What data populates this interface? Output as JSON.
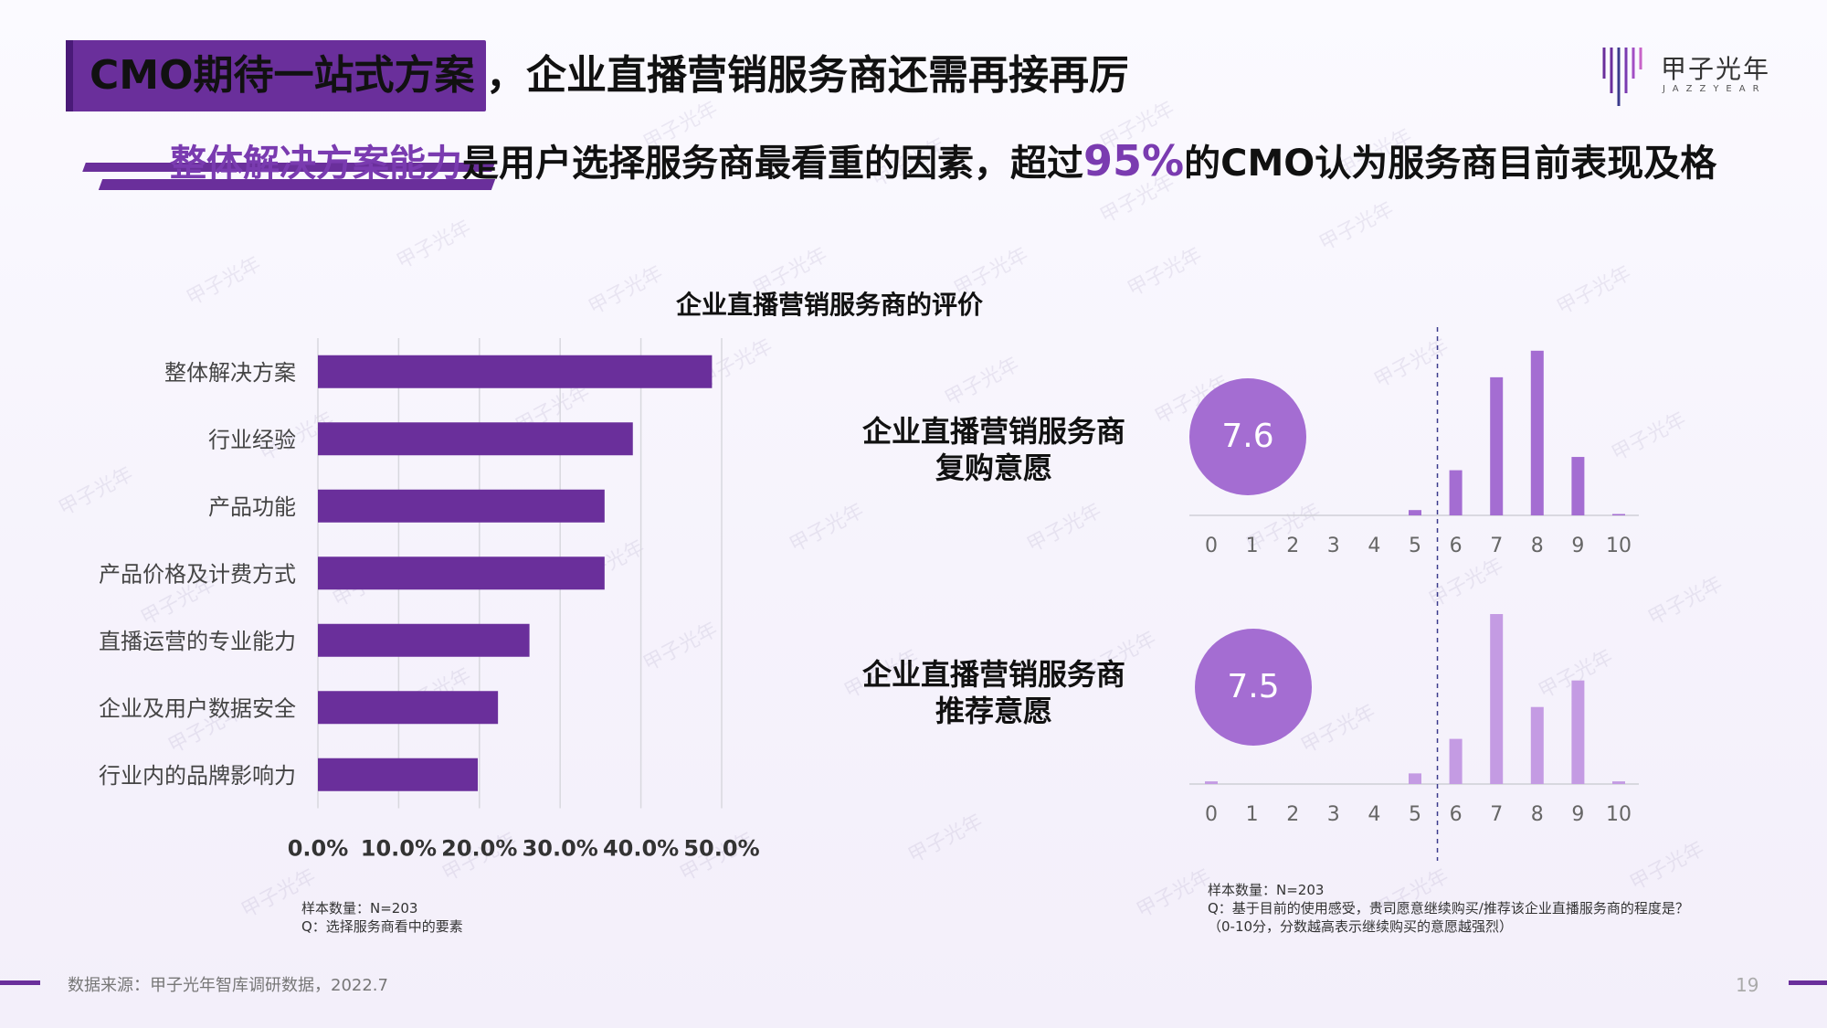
{
  "header": {
    "title_highlight": "CMO期待一站式方案",
    "title_rest": "，企业直播营销服务商还需再接再厉",
    "subtitle_part1": "整体解决方案能力",
    "subtitle_part2": "是用户选择服务商最看重的因素，超过",
    "subtitle_part3": "95%",
    "subtitle_part4": "的CMO认为服务商目前表现及格"
  },
  "logo": {
    "name": "甲子光年",
    "sub": "JAZZYEAR"
  },
  "watermark_text": "甲子光年",
  "chart_data": [
    {
      "type": "bar",
      "orientation": "horizontal",
      "title": "企业直播营销服务商的评价",
      "categories": [
        "整体解决方案",
        "行业经验",
        "产品功能",
        "产品价格及计费方式",
        "直播运营的专业能力",
        "企业及用户数据安全",
        "行业内的品牌影响力"
      ],
      "values": [
        48.8,
        39.0,
        35.5,
        35.5,
        26.2,
        22.3,
        19.8
      ],
      "x_ticks": [
        "0.0%",
        "10.0%",
        "20.0%",
        "30.0%",
        "40.0%",
        "50.0%"
      ],
      "xlim": [
        0,
        50
      ],
      "grid": true,
      "color": "#6a2f9b",
      "note_lines": [
        "样本数量：N=203",
        "Q：选择服务商看中的要素"
      ]
    },
    {
      "type": "bar",
      "label_line1": "企业直播营销服务商",
      "label_line2": "复购意愿",
      "score": "7.6",
      "categories": [
        "0",
        "1",
        "2",
        "3",
        "4",
        "5",
        "6",
        "7",
        "8",
        "9",
        "10"
      ],
      "values": [
        0,
        0,
        0,
        0,
        0,
        0.02,
        0.17,
        0.52,
        0.62,
        0.22,
        0.005
      ],
      "color": "#a46dd2"
    },
    {
      "type": "bar",
      "label_line1": "企业直播营销服务商",
      "label_line2": "推荐意愿",
      "score": "7.5",
      "categories": [
        "0",
        "1",
        "2",
        "3",
        "4",
        "5",
        "6",
        "7",
        "8",
        "9",
        "10"
      ],
      "values": [
        0.01,
        0,
        0,
        0,
        0,
        0.04,
        0.17,
        0.64,
        0.29,
        0.39,
        0.01
      ],
      "color": "#c49be3",
      "note_lines": [
        "样本数量：N=203",
        "Q：基于目前的使用感受，贵司愿意继续购买/推荐该企业直播服务商的程度是？",
        "（0-10分，分数越高表示继续购买的意愿越强烈）"
      ]
    }
  ],
  "footer": {
    "source": "数据来源：甲子光年智库调研数据，2022.7",
    "page": "19"
  }
}
